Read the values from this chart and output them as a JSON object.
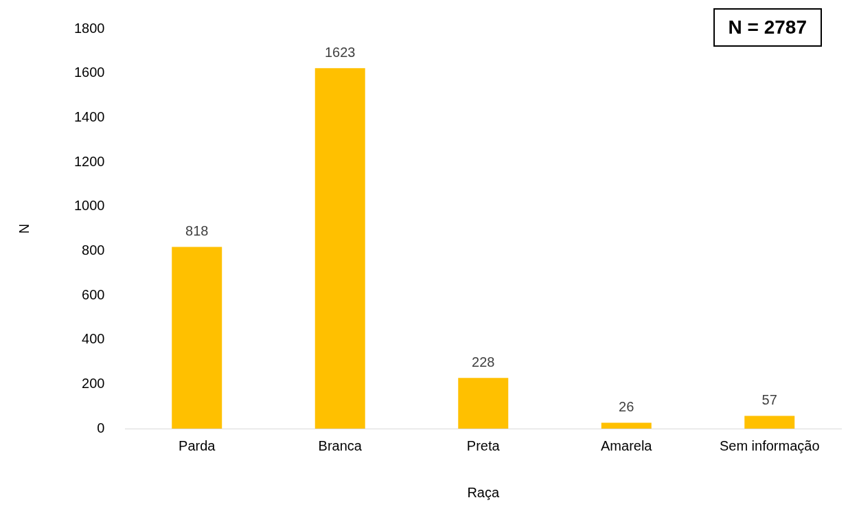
{
  "chart_data": {
    "type": "bar",
    "xlabel": "Raça",
    "ylabel": "N",
    "categories": [
      "Parda",
      "Branca",
      "Preta",
      "Amarela",
      "Sem informação"
    ],
    "values": [
      818,
      1623,
      228,
      26,
      57
    ],
    "color": "#ffc000",
    "ylim": [
      0,
      1800
    ],
    "yticks": [
      0,
      200,
      400,
      600,
      800,
      1000,
      1200,
      1400,
      1600,
      1800
    ],
    "grid": false,
    "legend": false,
    "data_labels": true,
    "annotations": [
      "N = 2787"
    ]
  }
}
